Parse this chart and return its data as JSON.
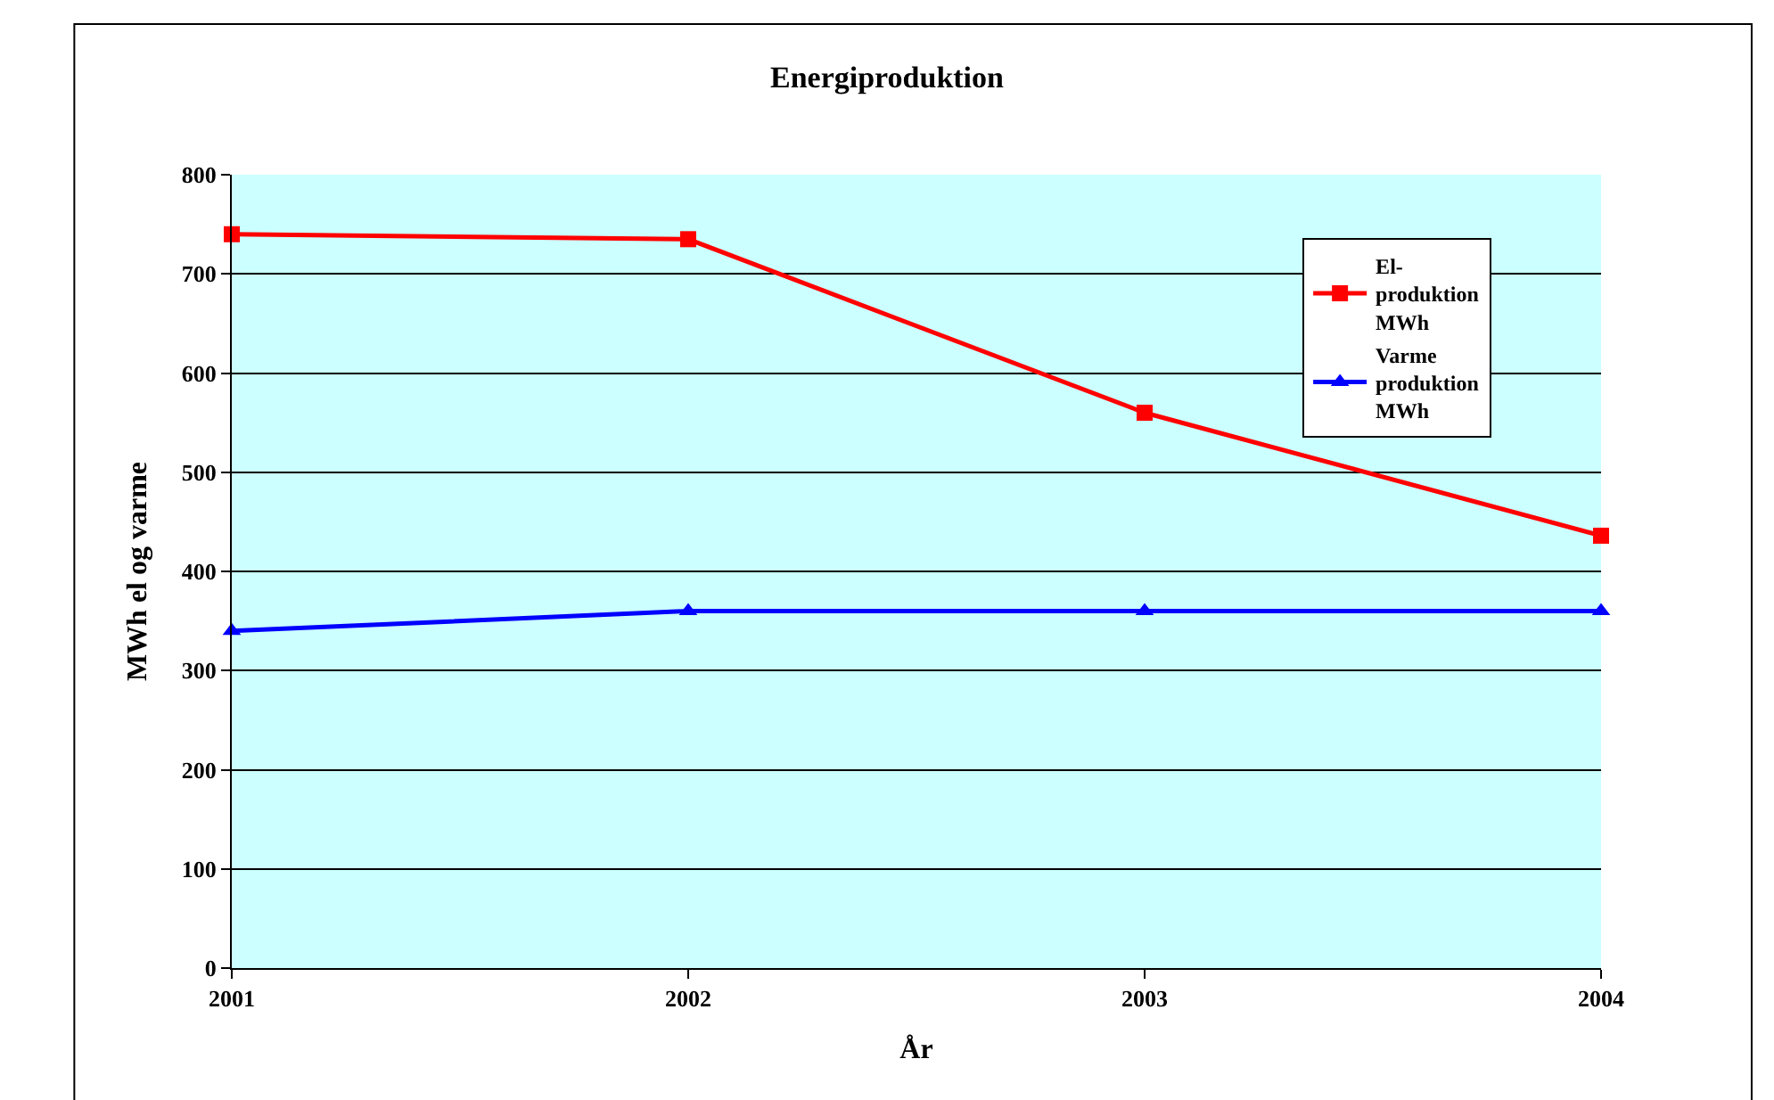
{
  "chart_data": {
    "type": "line",
    "title": "Energiproduktion",
    "xlabel": "År",
    "ylabel": "MWh el og varme",
    "categories": [
      "2001",
      "2002",
      "2003",
      "2004"
    ],
    "series": [
      {
        "name": "El-produktion MWh",
        "color": "#ff0000",
        "marker": "square",
        "values": [
          740,
          735,
          560,
          436
        ]
      },
      {
        "name": "Varme produktion MWh",
        "color": "#0000ff",
        "marker": "triangle",
        "values": [
          340,
          360,
          360,
          360
        ]
      }
    ],
    "ylim": [
      0,
      800
    ],
    "yticks": [
      0,
      100,
      200,
      300,
      400,
      500,
      600,
      700,
      800
    ],
    "grid": "y",
    "legend": "top right"
  }
}
